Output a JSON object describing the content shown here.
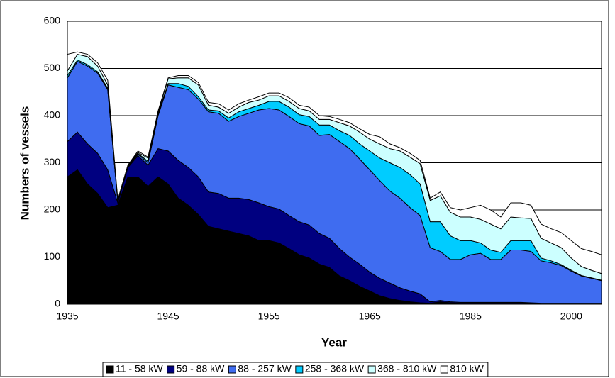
{
  "chart_data": {
    "type": "stacked_area",
    "x_label": "Year",
    "y_label": "Numbers of vessels",
    "categories": [
      "1935",
      null,
      null,
      null,
      null,
      null,
      null,
      null,
      null,
      null,
      "1945",
      null,
      null,
      null,
      null,
      null,
      null,
      null,
      null,
      null,
      "1955",
      null,
      null,
      null,
      null,
      null,
      null,
      null,
      null,
      null,
      "1965",
      null,
      null,
      null,
      null,
      null,
      null,
      null,
      null,
      null,
      "1985",
      null,
      null,
      null,
      null,
      null,
      null,
      null,
      null,
      null,
      "2000",
      null,
      null,
      null
    ],
    "ylim": [
      0,
      600
    ],
    "yticks": [
      0,
      100,
      200,
      300,
      400,
      500,
      600
    ],
    "grid": true,
    "legend": "bottom",
    "series": [
      {
        "name": "11 - 58 kW",
        "color": "#000000",
        "values": [
          270,
          285,
          255,
          235,
          205,
          210,
          270,
          270,
          250,
          270,
          255,
          225,
          210,
          190,
          165,
          160,
          155,
          150,
          145,
          135,
          135,
          130,
          118,
          105,
          98,
          85,
          78,
          60,
          50,
          38,
          28,
          18,
          12,
          8,
          5,
          3,
          2,
          5,
          3,
          2,
          2,
          2,
          2,
          2,
          2,
          2,
          2,
          1,
          1,
          1,
          1,
          1,
          1,
          1
        ]
      },
      {
        "name": "59 - 88 kW",
        "color": "#000080",
        "values": [
          75,
          80,
          85,
          85,
          80,
          5,
          20,
          45,
          45,
          60,
          70,
          80,
          80,
          80,
          73,
          75,
          70,
          75,
          77,
          80,
          72,
          72,
          70,
          70,
          70,
          65,
          62,
          58,
          50,
          47,
          40,
          37,
          33,
          27,
          23,
          19,
          3,
          3,
          2,
          2,
          2,
          2,
          2,
          2,
          2,
          2,
          1,
          1,
          1,
          1,
          1,
          1,
          1,
          1
        ]
      },
      {
        "name": "88 - 257 kW",
        "color": "#3f6cf0",
        "values": [
          135,
          150,
          165,
          170,
          170,
          3,
          2,
          3,
          5,
          70,
          140,
          155,
          165,
          165,
          170,
          170,
          163,
          173,
          183,
          197,
          208,
          210,
          210,
          208,
          210,
          208,
          220,
          227,
          230,
          223,
          217,
          207,
          195,
          190,
          177,
          166,
          115,
          104,
          90,
          91,
          101,
          104,
          91,
          91,
          111,
          111,
          109,
          90,
          86,
          80,
          68,
          58,
          53,
          48
        ]
      },
      {
        "name": "258 - 368 kW",
        "color": "#00ccff",
        "values": [
          5,
          3,
          3,
          3,
          3,
          0,
          1,
          2,
          3,
          5,
          3,
          8,
          7,
          5,
          4,
          5,
          7,
          10,
          10,
          10,
          15,
          18,
          20,
          19,
          20,
          22,
          20,
          23,
          28,
          32,
          40,
          48,
          60,
          65,
          70,
          67,
          55,
          63,
          50,
          40,
          30,
          22,
          20,
          15,
          20,
          20,
          23,
          6,
          4,
          2,
          2,
          1,
          1,
          1
        ]
      },
      {
        "name": "368 - 810 kW",
        "color": "#ccffff",
        "values": [
          10,
          12,
          17,
          12,
          7,
          2,
          1,
          2,
          7,
          3,
          10,
          12,
          18,
          25,
          10,
          8,
          10,
          10,
          13,
          11,
          12,
          12,
          12,
          13,
          12,
          12,
          12,
          17,
          20,
          25,
          25,
          30,
          30,
          35,
          37,
          43,
          45,
          55,
          50,
          50,
          50,
          50,
          55,
          50,
          50,
          48,
          47,
          42,
          38,
          36,
          26,
          19,
          16,
          14
        ]
      },
      {
        "name": "810 kW",
        "color": "#ffffff",
        "values": [
          35,
          5,
          5,
          7,
          10,
          2,
          1,
          3,
          2,
          2,
          2,
          5,
          5,
          5,
          6,
          7,
          7,
          7,
          5,
          7,
          6,
          6,
          8,
          7,
          8,
          8,
          6,
          7,
          7,
          7,
          10,
          15,
          10,
          7,
          8,
          7,
          5,
          8,
          10,
          15,
          20,
          30,
          30,
          25,
          30,
          32,
          28,
          30,
          30,
          32,
          37,
          38,
          40,
          40
        ]
      }
    ]
  }
}
